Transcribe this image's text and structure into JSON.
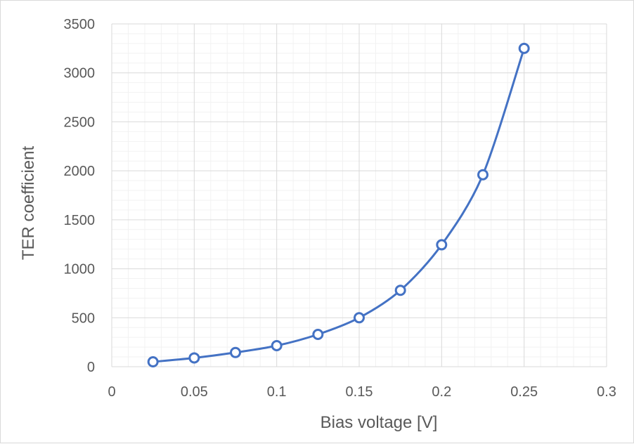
{
  "chart_data": {
    "type": "scatter",
    "title": "",
    "xlabel": "Bias voltage [V]",
    "ylabel": "TER coefficient",
    "xlim": [
      0,
      0.3
    ],
    "ylim": [
      0,
      3500
    ],
    "x_ticks": [
      "0",
      "0.05",
      "0.1",
      "0.15",
      "0.2",
      "0.25",
      "0.3"
    ],
    "y_ticks": [
      "0",
      "500",
      "1000",
      "1500",
      "2000",
      "2500",
      "3000",
      "3500"
    ],
    "grid": "major and minor",
    "legend": "none",
    "series": [
      {
        "color": "#4472c4",
        "marker": "open-circle",
        "line": "smooth",
        "points": [
          {
            "x": 0.025,
            "y": 50
          },
          {
            "x": 0.05,
            "y": 90
          },
          {
            "x": 0.075,
            "y": 145
          },
          {
            "x": 0.1,
            "y": 215
          },
          {
            "x": 0.125,
            "y": 330
          },
          {
            "x": 0.15,
            "y": 500
          },
          {
            "x": 0.175,
            "y": 780
          },
          {
            "x": 0.2,
            "y": 1245
          },
          {
            "x": 0.225,
            "y": 1960
          },
          {
            "x": 0.25,
            "y": 3250
          }
        ]
      }
    ]
  }
}
